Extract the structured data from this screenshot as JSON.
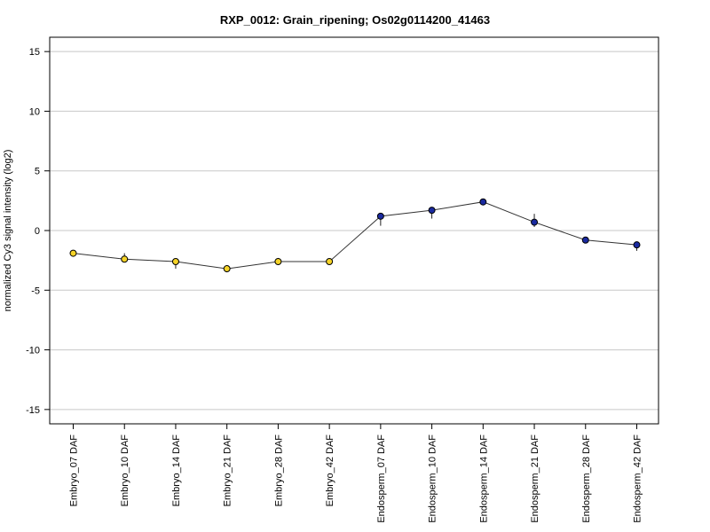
{
  "chart_data": {
    "type": "line",
    "title": "RXP_0012: Grain_ripening; Os02g0114200_41463",
    "xlabel": "",
    "ylabel": "normalized Cy3 signal intensity (log2)",
    "ylim": [
      -16.2,
      16.2
    ],
    "yticks": [
      -15,
      -10,
      -5,
      0,
      5,
      10,
      15
    ],
    "ytick_labels": [
      "-15",
      "-10",
      "-5",
      "0",
      "5",
      "10",
      "15"
    ],
    "grid": true,
    "categories": [
      "Embryo_07 DAF",
      "Embryo_10 DAF",
      "Embryo_14 DAF",
      "Embryo_21 DAF",
      "Embryo_28 DAF",
      "Embryo_42 DAF",
      "Endosperm_07 DAF",
      "Endosperm_10 DAF",
      "Endosperm_14 DAF",
      "Endosperm_21 DAF",
      "Endosperm_28 DAF",
      "Endosperm_42 DAF"
    ],
    "values": [
      -1.9,
      -2.4,
      -2.6,
      -3.2,
      -2.6,
      -2.6,
      1.2,
      1.7,
      2.4,
      0.7,
      -0.8,
      -1.2
    ],
    "error_low": [
      -1.9,
      -2.6,
      -3.2,
      -3.5,
      -2.9,
      -2.6,
      0.4,
      1.0,
      2.3,
      0.3,
      -0.8,
      -1.7
    ],
    "error_high": [
      -1.9,
      -1.9,
      -2.4,
      -3.0,
      -2.3,
      -2.6,
      1.4,
      1.9,
      2.5,
      1.4,
      -0.8,
      -1.0
    ],
    "marker_colors": [
      "#f5d327",
      "#f5d327",
      "#f5d327",
      "#f5d327",
      "#f5d327",
      "#f5d327",
      "#1a2aa0",
      "#1a2aa0",
      "#1a2aa0",
      "#1a2aa0",
      "#1a2aa0",
      "#1a2aa0"
    ],
    "line_color": "#333333",
    "grid_color": "#c8c8c8"
  }
}
